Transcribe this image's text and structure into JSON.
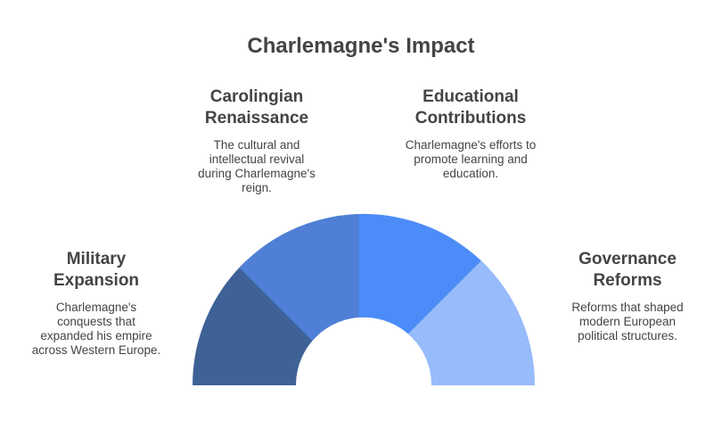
{
  "title": "Charlemagne's Impact",
  "segments": [
    {
      "key": "military",
      "heading_lines": [
        "Military",
        "Expansion"
      ],
      "description_lines": [
        "Charlemagne's",
        "conquests that",
        "expanded his empire",
        "across Western Europe."
      ],
      "color": "#3E6296"
    },
    {
      "key": "carolingian",
      "heading_lines": [
        "Carolingian",
        "Renaissance"
      ],
      "description_lines": [
        "The cultural and",
        "intellectual revival",
        "during Charlemagne's",
        "reign."
      ],
      "color": "#4F7FD6"
    },
    {
      "key": "educational",
      "heading_lines": [
        "Educational",
        "Contributions"
      ],
      "description_lines": [
        "Charlemagne's efforts to",
        "promote learning and",
        "education."
      ],
      "color": "#4C8CF8"
    },
    {
      "key": "governance",
      "heading_lines": [
        "Governance",
        "Reforms"
      ],
      "description_lines": [
        "Reforms that shaped",
        "modern European",
        "political structures."
      ],
      "color": "#97BBFB"
    }
  ]
}
